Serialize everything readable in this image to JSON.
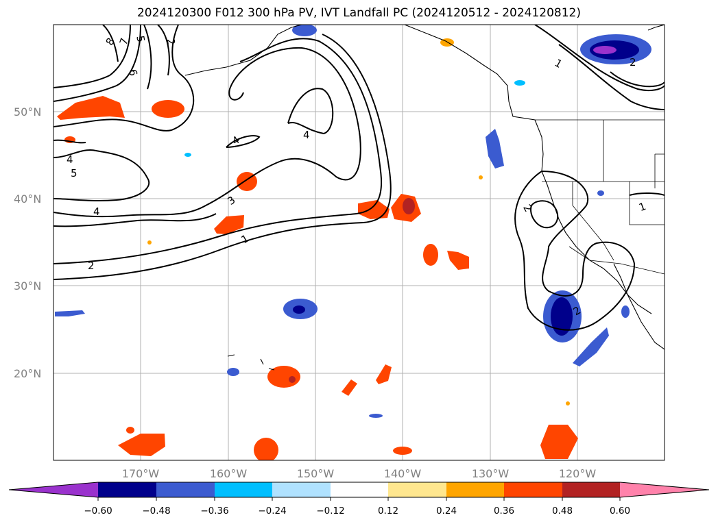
{
  "title": "2024120300 F012 300 hPa PV, IVT Landfall PC (2024120512 - 2024120812)",
  "lat_labels": [
    "50°N",
    "40°N",
    "30°N",
    "20°N"
  ],
  "lon_labels": [
    "170°W",
    "160°W",
    "150°W",
    "140°W",
    "130°W",
    "120°W"
  ],
  "colorbar": {
    "ticks": [
      "−0.60",
      "−0.48",
      "−0.36",
      "−0.24",
      "−0.12",
      "0.12",
      "0.24",
      "0.36",
      "0.48",
      "0.60"
    ],
    "colors": [
      "#9a32cd",
      "#00008b",
      "#3b5bd0",
      "#00bfff",
      "#b0e2ff",
      "#ffffff",
      "#ffe78f",
      "#ffa500",
      "#ff4500",
      "#b22222",
      "#ff82ab"
    ]
  },
  "contour_labels": [
    "8",
    "7",
    "5",
    "2",
    "6",
    "4",
    "4",
    "4",
    "5",
    "4",
    "3",
    "1",
    "2",
    "1",
    "2",
    "2",
    "1",
    "2"
  ]
}
